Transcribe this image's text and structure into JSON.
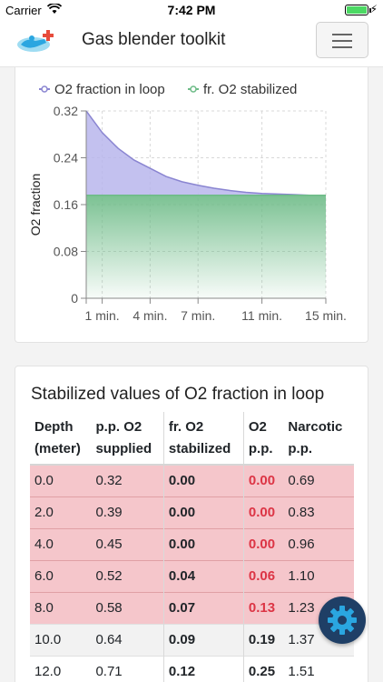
{
  "status_bar": {
    "carrier": "Carrier",
    "time": "7:42 PM"
  },
  "navbar": {
    "brand": "Gas blender toolkit"
  },
  "chart": {
    "legend": [
      "O2 fraction in loop",
      "fr. O2 stabilized"
    ],
    "y_axis_label": "O2 fraction",
    "y_tick_labels": [
      "0.32",
      "0.24",
      "0.16",
      "0.08",
      "0"
    ],
    "x_tick_labels": [
      "1 min.",
      "4 min.",
      "7 min.",
      "11 min.",
      "15 min."
    ]
  },
  "chart_data": {
    "type": "area",
    "title": "",
    "xlabel": "",
    "ylabel": "O2 fraction",
    "ylim": [
      0,
      0.32
    ],
    "x": [
      0,
      1,
      2,
      3,
      4,
      5,
      6,
      7,
      8,
      9,
      10,
      11,
      12,
      13,
      14,
      15
    ],
    "series": [
      {
        "name": "O2 fraction in loop",
        "color": "#8a85d1",
        "values": [
          0.32,
          0.283,
          0.256,
          0.236,
          0.222,
          0.208,
          0.199,
          0.193,
          0.188,
          0.184,
          0.181,
          0.179,
          0.178,
          0.177,
          0.176,
          0.176
        ]
      },
      {
        "name": "fr. O2 stabilized",
        "color": "#6dbb87",
        "values": [
          0.176,
          0.176,
          0.176,
          0.176,
          0.176,
          0.176,
          0.176,
          0.176,
          0.176,
          0.176,
          0.176,
          0.176,
          0.176,
          0.176,
          0.176,
          0.176
        ]
      }
    ],
    "grid": true,
    "legend_position": "top"
  },
  "table": {
    "title": "Stabilized values of O2 fraction in loop",
    "headers": [
      [
        "Depth",
        "(meter)"
      ],
      [
        "p.p. O2",
        "supplied"
      ],
      [
        "fr. O2",
        "stabilized"
      ],
      [
        "O2",
        "p.p."
      ],
      [
        "Narcotic",
        "p.p."
      ]
    ],
    "rows": [
      {
        "depth": "0.0",
        "pp_supplied": "0.32",
        "fr_stabilized": "0.00",
        "o2_pp": "0.00",
        "narcotic": "0.69",
        "warn": true
      },
      {
        "depth": "2.0",
        "pp_supplied": "0.39",
        "fr_stabilized": "0.00",
        "o2_pp": "0.00",
        "narcotic": "0.83",
        "warn": true
      },
      {
        "depth": "4.0",
        "pp_supplied": "0.45",
        "fr_stabilized": "0.00",
        "o2_pp": "0.00",
        "narcotic": "0.96",
        "warn": true
      },
      {
        "depth": "6.0",
        "pp_supplied": "0.52",
        "fr_stabilized": "0.04",
        "o2_pp": "0.06",
        "narcotic": "1.10",
        "warn": true
      },
      {
        "depth": "8.0",
        "pp_supplied": "0.58",
        "fr_stabilized": "0.07",
        "o2_pp": "0.13",
        "narcotic": "1.23",
        "warn": true
      },
      {
        "depth": "10.0",
        "pp_supplied": "0.64",
        "fr_stabilized": "0.09",
        "o2_pp": "0.19",
        "narcotic": "1.37",
        "warn": false
      },
      {
        "depth": "12.0",
        "pp_supplied": "0.71",
        "fr_stabilized": "0.12",
        "o2_pp": "0.25",
        "narcotic": "1.51",
        "warn": false
      }
    ]
  },
  "colors": {
    "warn_row": "#f5c6cb",
    "warn_text": "#dc3545",
    "fab": "#1f3f66",
    "fab_icon": "#2aa6e0"
  },
  "icons": {
    "logo": "diver-logo-icon",
    "menu": "hamburger-icon",
    "settings": "gear-icon"
  }
}
